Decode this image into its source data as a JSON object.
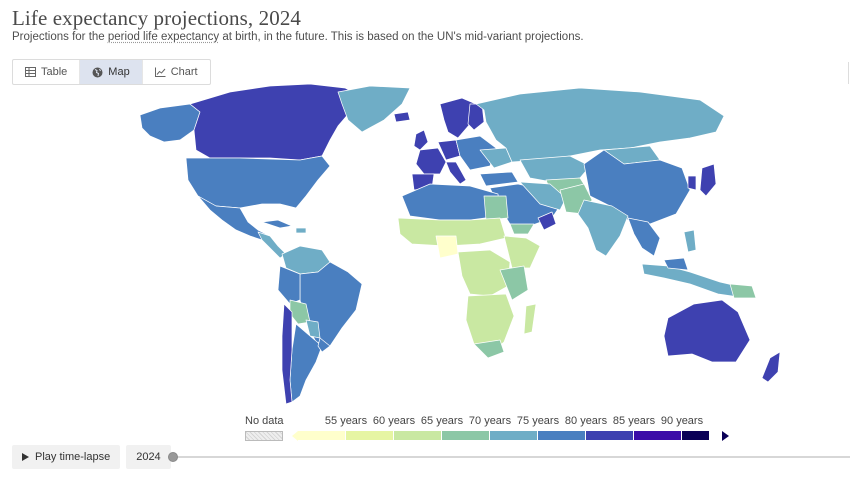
{
  "header": {
    "title": "Life expectancy projections, 2024",
    "subtitle_before": "Projections for the ",
    "subtitle_link": "period life expectancy",
    "subtitle_after": " at birth, in the future. This is based on the UN's mid-variant projections."
  },
  "tabs": [
    {
      "label": "Table",
      "icon": "table-icon",
      "active": false
    },
    {
      "label": "Map",
      "icon": "globe-icon",
      "active": true
    },
    {
      "label": "Chart",
      "icon": "line-chart-icon",
      "active": false
    }
  ],
  "legend": {
    "no_data_label": "No data",
    "ticks": [
      "55 years",
      "60 years",
      "65 years",
      "70 years",
      "75 years",
      "80 years",
      "85 years",
      "90 years"
    ],
    "colors": [
      "#ffffcc",
      "#e6f5a3",
      "#c9e8a2",
      "#8cc7a6",
      "#6fadc6",
      "#4a7fc0",
      "#3e41b0",
      "#3b0ca8",
      "#0a0057"
    ]
  },
  "controls": {
    "play_label": "Play time-lapse",
    "year_label": "2024",
    "timeline_position": 0
  }
}
